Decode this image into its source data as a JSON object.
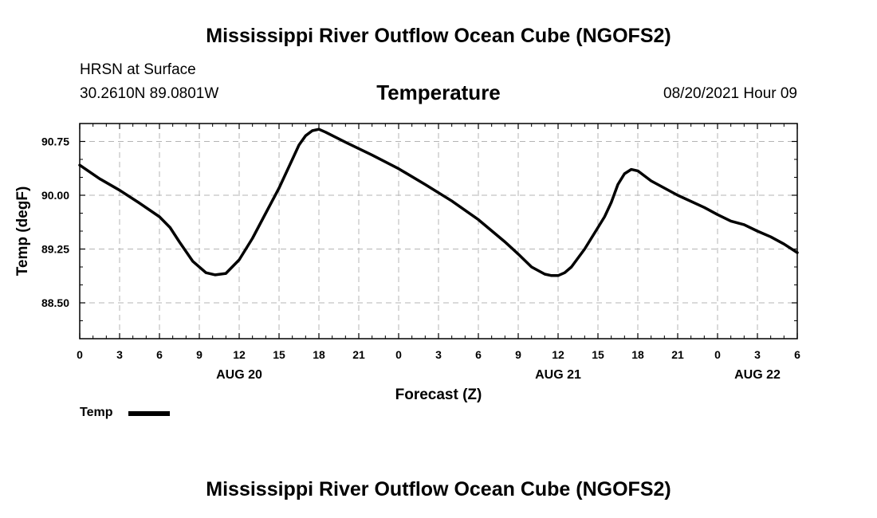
{
  "header": {
    "title": "Mississippi River Outflow Ocean Cube (NGOFS2)",
    "station": "HRSN at Surface",
    "coords": "30.2610N  89.0801W",
    "variable": "Temperature",
    "timestamp": "08/20/2021 Hour 09"
  },
  "footer": {
    "title": "Mississippi River Outflow Ocean Cube (NGOFS2)"
  },
  "legend": {
    "label": "Temp"
  },
  "chart_data": {
    "type": "line",
    "title": "Temperature",
    "xlabel": "Forecast (Z)",
    "ylabel": "Temp (degF)",
    "xlim": [
      0,
      54
    ],
    "ylim": [
      88.0,
      91.0
    ],
    "grid": true,
    "x_ticks": [
      0,
      3,
      6,
      9,
      12,
      15,
      18,
      21,
      24,
      27,
      30,
      33,
      36,
      39,
      42,
      45,
      48,
      51,
      54
    ],
    "x_tick_labels": [
      "0",
      "3",
      "6",
      "9",
      "12",
      "15",
      "18",
      "21",
      "0",
      "3",
      "6",
      "9",
      "12",
      "15",
      "18",
      "21",
      "0",
      "3",
      "6"
    ],
    "y_ticks": [
      88.5,
      89.25,
      90.0,
      90.75
    ],
    "y_tick_labels": [
      "88.50",
      "89.25",
      "90.00",
      "90.75"
    ],
    "day_labels": [
      {
        "x": 12,
        "label": "AUG 20"
      },
      {
        "x": 36,
        "label": "AUG 21"
      },
      {
        "x": 51,
        "label": "AUG 22"
      }
    ],
    "series": [
      {
        "name": "Temp",
        "color": "#000000",
        "x": [
          0,
          1.5,
          3,
          4.5,
          6,
          6.8,
          7.5,
          8.5,
          9.5,
          10.2,
          11,
          12,
          13,
          14,
          15,
          16,
          16.5,
          17,
          17.5,
          18,
          18.5,
          20,
          22,
          24,
          26,
          28,
          30,
          32,
          33,
          34,
          35,
          35.5,
          36,
          36.5,
          37,
          38,
          39,
          39.5,
          40,
          40.5,
          41,
          41.5,
          42,
          43,
          45,
          47,
          48,
          49,
          50,
          51,
          52,
          53,
          54
        ],
        "y": [
          90.42,
          90.23,
          90.07,
          89.89,
          89.7,
          89.55,
          89.35,
          89.08,
          88.92,
          88.89,
          88.91,
          89.1,
          89.4,
          89.75,
          90.1,
          90.5,
          90.7,
          90.83,
          90.9,
          90.92,
          90.88,
          90.74,
          90.56,
          90.37,
          90.15,
          89.92,
          89.66,
          89.35,
          89.18,
          89.0,
          88.9,
          88.88,
          88.88,
          88.92,
          89.0,
          89.25,
          89.55,
          89.7,
          89.9,
          90.15,
          90.3,
          90.36,
          90.34,
          90.2,
          90.0,
          89.83,
          89.73,
          89.64,
          89.59,
          89.5,
          89.42,
          89.32,
          89.2
        ]
      }
    ]
  }
}
